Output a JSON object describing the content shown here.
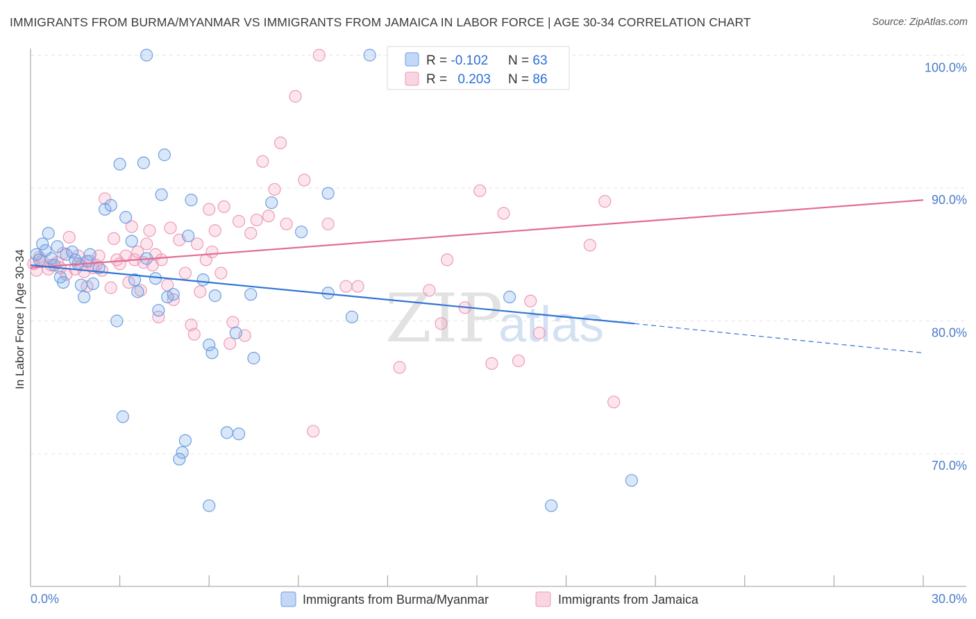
{
  "title": "IMMIGRANTS FROM BURMA/MYANMAR VS IMMIGRANTS FROM JAMAICA IN LABOR FORCE | AGE 30-34 CORRELATION CHART",
  "source": "Source: ZipAtlas.com",
  "watermark": {
    "zip": "ZIP",
    "atlas": "atlas"
  },
  "colors": {
    "burma_fill": "rgba(120,168,235,0.28)",
    "burma_stroke": "#6d9fe0",
    "burma_line": "#2f73d4",
    "jamaica_fill": "rgba(244,160,190,0.28)",
    "jamaica_stroke": "#ec9bb7",
    "jamaica_line": "#e36a95",
    "tick_text": "#4a7bc9",
    "grid": "#e3e3e3"
  },
  "legend": {
    "rows": [
      {
        "r_label": "R = ",
        "r_value": "-0.102",
        "n_label": "N = ",
        "n_value": "63"
      },
      {
        "r_label": "R = ",
        "r_value": "0.203",
        "n_label": "N = ",
        "n_value": "86"
      }
    ]
  },
  "chart_data": {
    "type": "scatter",
    "title": "IMMIGRANTS FROM BURMA/MYANMAR VS IMMIGRANTS FROM JAMAICA IN LABOR FORCE | AGE 30-34 CORRELATION CHART",
    "xlabel": "",
    "ylabel": "In Labor Force | Age 30-34",
    "xlim": [
      0,
      30
    ],
    "ylim": [
      60,
      101.5
    ],
    "x_tick_labels": [
      "0.0%",
      "30.0%"
    ],
    "y_ticks": [
      70,
      80,
      90,
      100
    ],
    "y_tick_labels": [
      "70.0%",
      "80.0%",
      "90.0%",
      "100.0%"
    ],
    "grid": true,
    "legend_position": "top-center",
    "series": [
      {
        "name": "Immigrants from Burma/Myanmar",
        "r": -0.102,
        "n": 63,
        "trend": {
          "x0": 0,
          "y0": 84.2,
          "x1": 20.3,
          "y1": 79.8,
          "dashed_to_x": 30,
          "dashed_to_y": 77.6
        },
        "points": [
          [
            0.2,
            85.0
          ],
          [
            0.3,
            84.6
          ],
          [
            0.4,
            85.8
          ],
          [
            0.5,
            85.3
          ],
          [
            0.6,
            86.6
          ],
          [
            0.7,
            84.7
          ],
          [
            0.8,
            84.2
          ],
          [
            0.9,
            85.6
          ],
          [
            1.0,
            83.3
          ],
          [
            1.1,
            82.9
          ],
          [
            1.2,
            85.0
          ],
          [
            1.4,
            85.2
          ],
          [
            1.5,
            84.6
          ],
          [
            1.6,
            84.3
          ],
          [
            1.7,
            82.7
          ],
          [
            1.8,
            81.8
          ],
          [
            1.9,
            84.5
          ],
          [
            2.0,
            85.0
          ],
          [
            2.1,
            82.8
          ],
          [
            2.3,
            84.0
          ],
          [
            2.5,
            88.4
          ],
          [
            2.7,
            88.7
          ],
          [
            2.9,
            80.0
          ],
          [
            3.0,
            91.8
          ],
          [
            3.1,
            72.8
          ],
          [
            3.2,
            87.8
          ],
          [
            3.4,
            86.0
          ],
          [
            3.5,
            83.1
          ],
          [
            3.6,
            82.2
          ],
          [
            3.8,
            91.9
          ],
          [
            3.9,
            84.7
          ],
          [
            3.9,
            100.0
          ],
          [
            4.2,
            83.2
          ],
          [
            4.3,
            80.8
          ],
          [
            4.4,
            89.5
          ],
          [
            4.5,
            92.5
          ],
          [
            4.6,
            81.8
          ],
          [
            4.8,
            82.0
          ],
          [
            5.0,
            69.6
          ],
          [
            5.1,
            70.1
          ],
          [
            5.2,
            71.0
          ],
          [
            5.3,
            86.4
          ],
          [
            5.4,
            89.1
          ],
          [
            5.8,
            83.1
          ],
          [
            6.0,
            78.2
          ],
          [
            6.1,
            77.6
          ],
          [
            6.2,
            81.9
          ],
          [
            6.6,
            71.6
          ],
          [
            6.9,
            79.1
          ],
          [
            7.0,
            71.5
          ],
          [
            7.5,
            77.2
          ],
          [
            8.1,
            88.9
          ],
          [
            9.1,
            86.7
          ],
          [
            10.0,
            89.6
          ],
          [
            10.0,
            82.1
          ],
          [
            10.8,
            80.3
          ],
          [
            11.4,
            100.0
          ],
          [
            12.6,
            100.0
          ],
          [
            16.1,
            81.8
          ],
          [
            17.5,
            66.1
          ],
          [
            20.2,
            68.0
          ],
          [
            7.4,
            82.0
          ],
          [
            6.0,
            66.1
          ]
        ]
      },
      {
        "name": "Immigrants from Jamaica",
        "r": 0.203,
        "n": 86,
        "trend": {
          "x0": 0,
          "y0": 84.0,
          "x1": 30,
          "y1": 89.1
        },
        "points": [
          [
            0.1,
            84.3
          ],
          [
            0.2,
            83.8
          ],
          [
            0.3,
            84.8
          ],
          [
            0.4,
            84.5
          ],
          [
            0.6,
            83.9
          ],
          [
            0.7,
            84.2
          ],
          [
            0.9,
            84.4
          ],
          [
            1.0,
            84.0
          ],
          [
            1.1,
            85.1
          ],
          [
            1.2,
            83.5
          ],
          [
            1.3,
            86.3
          ],
          [
            1.5,
            83.9
          ],
          [
            1.6,
            84.9
          ],
          [
            1.7,
            84.2
          ],
          [
            1.8,
            83.7
          ],
          [
            1.9,
            82.6
          ],
          [
            2.0,
            84.5
          ],
          [
            2.1,
            84.0
          ],
          [
            2.2,
            84.2
          ],
          [
            2.3,
            84.9
          ],
          [
            2.4,
            83.8
          ],
          [
            2.5,
            89.2
          ],
          [
            2.7,
            82.5
          ],
          [
            2.8,
            86.2
          ],
          [
            2.9,
            84.6
          ],
          [
            3.0,
            84.3
          ],
          [
            3.2,
            84.9
          ],
          [
            3.3,
            82.9
          ],
          [
            3.4,
            87.1
          ],
          [
            3.5,
            84.6
          ],
          [
            3.6,
            85.2
          ],
          [
            3.7,
            82.3
          ],
          [
            3.8,
            84.4
          ],
          [
            3.9,
            85.8
          ],
          [
            4.0,
            86.8
          ],
          [
            4.1,
            84.2
          ],
          [
            4.2,
            85.0
          ],
          [
            4.3,
            80.3
          ],
          [
            4.4,
            84.6
          ],
          [
            4.6,
            82.7
          ],
          [
            4.7,
            87.0
          ],
          [
            4.8,
            81.6
          ],
          [
            5.0,
            86.1
          ],
          [
            5.2,
            83.6
          ],
          [
            5.4,
            79.7
          ],
          [
            5.5,
            79.0
          ],
          [
            5.6,
            85.8
          ],
          [
            5.7,
            82.2
          ],
          [
            5.9,
            84.6
          ],
          [
            6.0,
            88.4
          ],
          [
            6.1,
            85.2
          ],
          [
            6.2,
            86.8
          ],
          [
            6.4,
            83.6
          ],
          [
            6.5,
            88.6
          ],
          [
            6.7,
            78.3
          ],
          [
            6.8,
            79.9
          ],
          [
            7.0,
            87.5
          ],
          [
            7.2,
            78.9
          ],
          [
            7.4,
            86.6
          ],
          [
            7.6,
            87.6
          ],
          [
            7.8,
            92.0
          ],
          [
            8.0,
            87.9
          ],
          [
            8.2,
            89.9
          ],
          [
            8.4,
            93.4
          ],
          [
            8.6,
            87.3
          ],
          [
            8.9,
            96.9
          ],
          [
            9.2,
            90.6
          ],
          [
            9.5,
            71.7
          ],
          [
            9.7,
            100.0
          ],
          [
            10.0,
            87.3
          ],
          [
            10.6,
            82.6
          ],
          [
            11.0,
            82.6
          ],
          [
            12.4,
            76.5
          ],
          [
            13.4,
            82.3
          ],
          [
            13.8,
            79.8
          ],
          [
            14.0,
            84.6
          ],
          [
            14.6,
            81.0
          ],
          [
            15.1,
            89.8
          ],
          [
            15.5,
            76.8
          ],
          [
            15.9,
            88.1
          ],
          [
            16.4,
            77.0
          ],
          [
            16.8,
            81.5
          ],
          [
            17.1,
            79.1
          ],
          [
            18.8,
            85.7
          ],
          [
            19.3,
            89.0
          ],
          [
            19.6,
            73.9
          ]
        ]
      }
    ]
  },
  "bottom_legend": [
    "Immigrants from Burma/Myanmar",
    "Immigrants from Jamaica"
  ]
}
